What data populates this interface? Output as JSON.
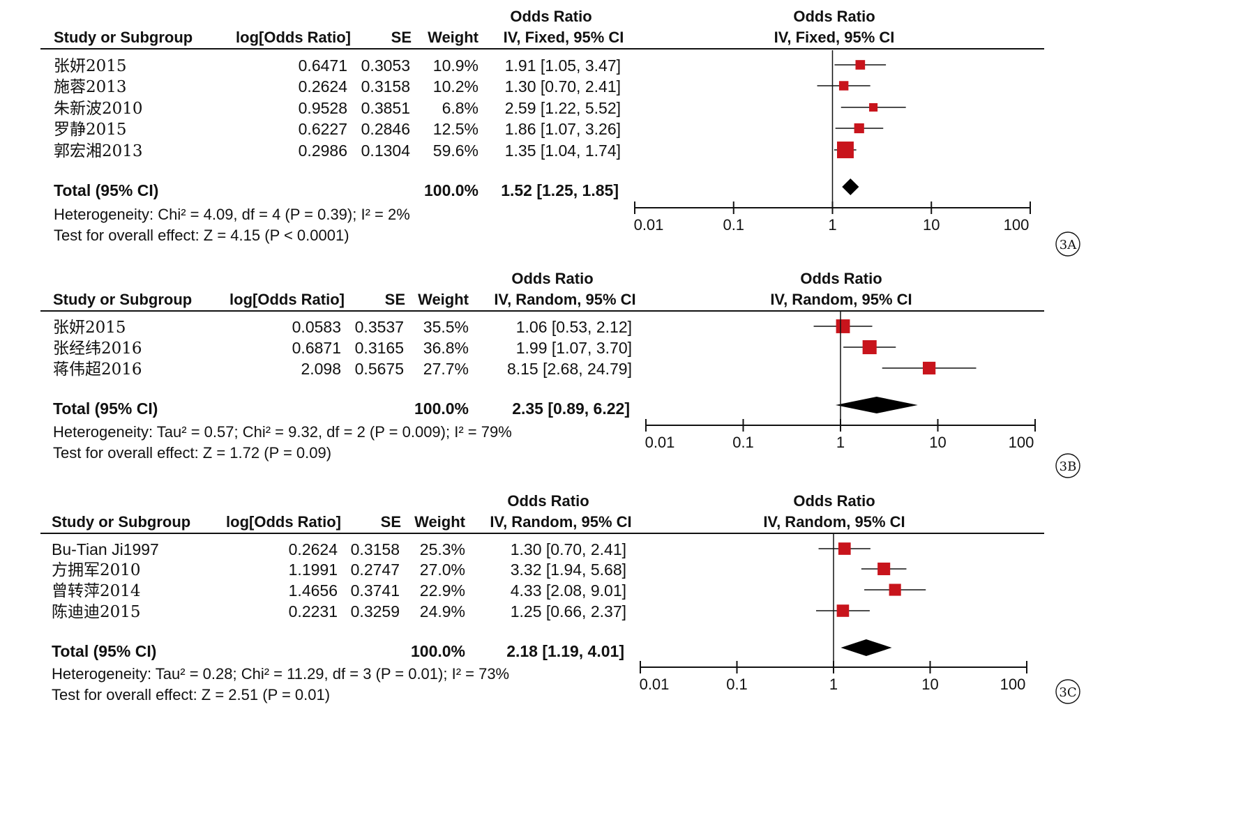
{
  "chart_data": [
    {
      "type": "forest",
      "panel_label": "3A",
      "columns": {
        "study": "Study or Subgroup",
        "logor": "log[Odds Ratio]",
        "se": "SE",
        "weight": "Weight",
        "or_title": "Odds Ratio",
        "or_method": "IV, Fixed, 95% CI",
        "plot_title": "Odds Ratio",
        "plot_method": "IV, Fixed, 95% CI"
      },
      "studies": [
        {
          "name": "张妍2015",
          "logor": "0.6471",
          "se": "0.3053",
          "weight_label": "10.9%",
          "weight": 10.9,
          "or_label": "1.91 [1.05, 3.47]",
          "or": 1.91,
          "lo": 1.05,
          "hi": 3.47
        },
        {
          "name": "施蓉2013",
          "logor": "0.2624",
          "se": "0.3158",
          "weight_label": "10.2%",
          "weight": 10.2,
          "or_label": "1.30 [0.70, 2.41]",
          "or": 1.3,
          "lo": 0.7,
          "hi": 2.41
        },
        {
          "name": "朱新波2010",
          "logor": "0.9528",
          "se": "0.3851",
          "weight_label": "6.8%",
          "weight": 6.8,
          "or_label": "2.59 [1.22, 5.52]",
          "or": 2.59,
          "lo": 1.22,
          "hi": 5.52
        },
        {
          "name": "罗静2015",
          "logor": "0.6227",
          "se": "0.2846",
          "weight_label": "12.5%",
          "weight": 12.5,
          "or_label": "1.86 [1.07, 3.26]",
          "or": 1.86,
          "lo": 1.07,
          "hi": 3.26
        },
        {
          "name": "郭宏湘2013",
          "logor": "0.2986",
          "se": "0.1304",
          "weight_label": "59.6%",
          "weight": 59.6,
          "or_label": "1.35 [1.04, 1.74]",
          "or": 1.35,
          "lo": 1.04,
          "hi": 1.74
        }
      ],
      "total": {
        "label": "Total (95% CI)",
        "weight_label": "100.0%",
        "or_label": "1.52 [1.25, 1.85]",
        "or": 1.52,
        "lo": 1.25,
        "hi": 1.85
      },
      "heterogeneity": "Heterogeneity: Chi² = 4.09, df = 4 (P = 0.39); I² = 2%",
      "overall_effect": "Test for overall effect: Z = 4.15 (P < 0.0001)",
      "x_scale": "log",
      "x_ticks": [
        0.01,
        0.1,
        1,
        10,
        100
      ],
      "x_tick_labels": [
        "0.01",
        "0.1",
        "1",
        "10",
        "100"
      ]
    },
    {
      "type": "forest",
      "panel_label": "3B",
      "columns": {
        "study": "Study or Subgroup",
        "logor": "log[Odds Ratio]",
        "se": "SE",
        "weight": "Weight",
        "or_title": "Odds Ratio",
        "or_method": "IV, Random, 95% CI",
        "plot_title": "Odds Ratio",
        "plot_method": "IV, Random, 95% CI"
      },
      "studies": [
        {
          "name": "张妍2015",
          "logor": "0.0583",
          "se": "0.3537",
          "weight_label": "35.5%",
          "weight": 35.5,
          "or_label": "1.06 [0.53, 2.12]",
          "or": 1.06,
          "lo": 0.53,
          "hi": 2.12
        },
        {
          "name": "张经纬2016",
          "logor": "0.6871",
          "se": "0.3165",
          "weight_label": "36.8%",
          "weight": 36.8,
          "or_label": "1.99 [1.07, 3.70]",
          "or": 1.99,
          "lo": 1.07,
          "hi": 3.7
        },
        {
          "name": "蒋伟超2016",
          "logor": "2.098",
          "se": "0.5675",
          "weight_label": "27.7%",
          "weight": 27.7,
          "or_label": "8.15 [2.68, 24.79]",
          "or": 8.15,
          "lo": 2.68,
          "hi": 24.79
        }
      ],
      "total": {
        "label": "Total (95% CI)",
        "weight_label": "100.0%",
        "or_label": "2.35 [0.89, 6.22]",
        "or": 2.35,
        "lo": 0.89,
        "hi": 6.22
      },
      "heterogeneity": "Heterogeneity: Tau² = 0.57; Chi² = 9.32, df = 2 (P = 0.009); I² = 79%",
      "overall_effect": "Test for overall effect: Z = 1.72 (P = 0.09)",
      "x_scale": "log",
      "x_ticks": [
        0.01,
        0.1,
        1,
        10,
        100
      ],
      "x_tick_labels": [
        "0.01",
        "0.1",
        "1",
        "10",
        "100"
      ]
    },
    {
      "type": "forest",
      "panel_label": "3C",
      "columns": {
        "study": "Study or Subgroup",
        "logor": "log[Odds Ratio]",
        "se": "SE",
        "weight": "Weight",
        "or_title": "Odds Ratio",
        "or_method": "IV, Random, 95% CI",
        "plot_title": "Odds Ratio",
        "plot_method": "IV, Random, 95% CI"
      },
      "studies": [
        {
          "name": "Bu-Tian Ji1997",
          "logor": "0.2624",
          "se": "0.3158",
          "weight_label": "25.3%",
          "weight": 25.3,
          "or_label": "1.30 [0.70, 2.41]",
          "or": 1.3,
          "lo": 0.7,
          "hi": 2.41
        },
        {
          "name": "方拥军2010",
          "logor": "1.1991",
          "se": "0.2747",
          "weight_label": "27.0%",
          "weight": 27.0,
          "or_label": "3.32 [1.94, 5.68]",
          "or": 3.32,
          "lo": 1.94,
          "hi": 5.68
        },
        {
          "name": "曾转萍2014",
          "logor": "1.4656",
          "se": "0.3741",
          "weight_label": "22.9%",
          "weight": 22.9,
          "or_label": "4.33 [2.08, 9.01]",
          "or": 4.33,
          "lo": 2.08,
          "hi": 9.01
        },
        {
          "name": "陈迪迪2015",
          "logor": "0.2231",
          "se": "0.3259",
          "weight_label": "24.9%",
          "weight": 24.9,
          "or_label": "1.25 [0.66, 2.37]",
          "or": 1.25,
          "lo": 0.66,
          "hi": 2.37
        }
      ],
      "total": {
        "label": "Total (95% CI)",
        "weight_label": "100.0%",
        "or_label": "2.18 [1.19, 4.01]",
        "or": 2.18,
        "lo": 1.19,
        "hi": 4.01
      },
      "heterogeneity": "Heterogeneity: Tau² = 0.28; Chi² = 11.29, df = 3 (P = 0.01); I² = 73%",
      "overall_effect": "Test for overall effect: Z = 2.51 (P = 0.01)",
      "x_scale": "log",
      "x_ticks": [
        0.01,
        0.1,
        1,
        10,
        100
      ],
      "x_tick_labels": [
        "0.01",
        "0.1",
        "1",
        "10",
        "100"
      ]
    }
  ],
  "colors": {
    "study_marker": "#c8141c",
    "summary_diamond": "#000000",
    "lines": "#111111",
    "text": "#111111"
  }
}
